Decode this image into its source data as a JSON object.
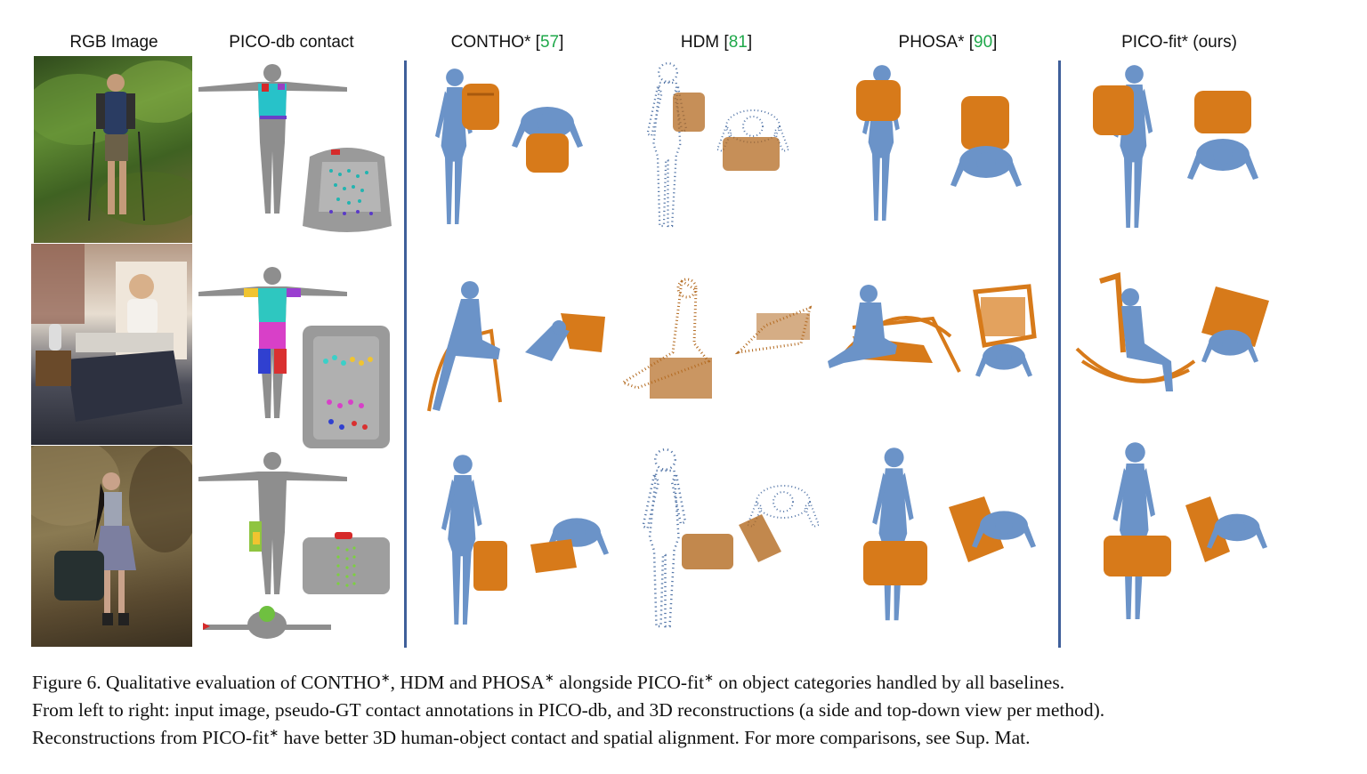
{
  "figure": {
    "headers": {
      "rgb": "RGB Image",
      "picodb": "PICO-db contact",
      "contho": "CONTHO*",
      "contho_ref": "57",
      "hdm": "HDM",
      "hdm_ref": "81",
      "phosa": "PHOSA*",
      "phosa_ref": "90",
      "picofit": "PICO-fit* (ours)"
    },
    "colors": {
      "human": "#6b93c8",
      "object": "#d77a1a",
      "pointcloud_human": "#5577a8",
      "pointcloud_object": "#b36a20",
      "separator": "#3f5f9a",
      "ref": "#1fa84a"
    }
  },
  "caption": {
    "line1_a": "Figure 6.  Qualitative evaluation of CONTHO",
    "line1_b": ", HDM and PHOSA",
    "line1_c": " alongside PICO-fit",
    "line1_d": " on object categories handled by all baselines.",
    "line2": "From left to right: input image, pseudo-GT contact annotations in PICO-db, and 3D reconstructions (a side and top-down view per method).",
    "line3_a": "Reconstructions from PICO-fit",
    "line3_b": " have better 3D human-object contact and spatial alignment. For more comparisons, see Sup. Mat.",
    "star": "∗"
  }
}
